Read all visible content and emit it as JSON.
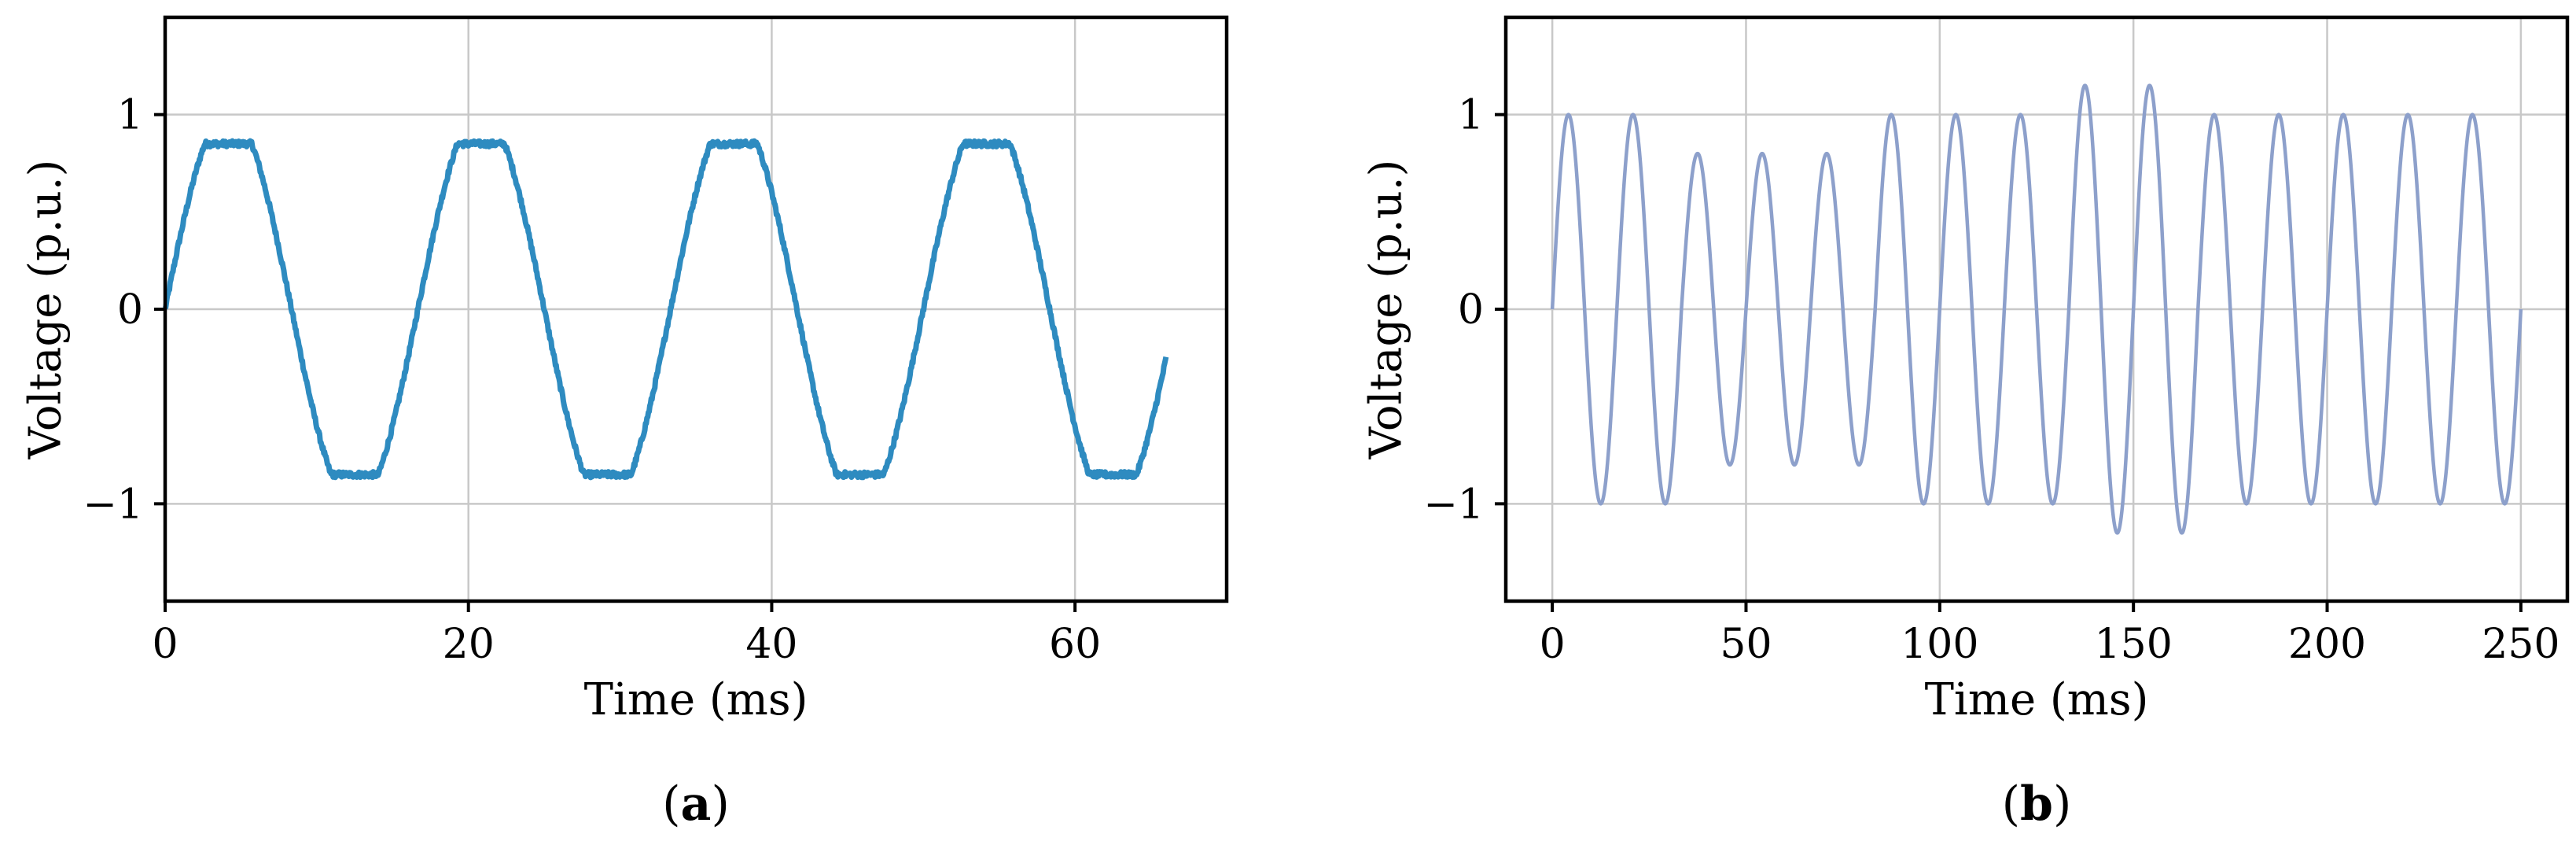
{
  "chart_data": [
    {
      "type": "line",
      "caption": "a",
      "xlabel": "Time (ms)",
      "ylabel": "Voltage (p.u.)",
      "xlim": [
        0,
        70
      ],
      "ylim": [
        -1.5,
        1.5
      ],
      "xticks": [
        {
          "value": 0,
          "label": "0"
        },
        {
          "value": 20,
          "label": "20"
        },
        {
          "value": 40,
          "label": "40"
        },
        {
          "value": 60,
          "label": "60"
        }
      ],
      "yticks": [
        {
          "value": -1,
          "label": "−1"
        },
        {
          "value": 0,
          "label": "0"
        },
        {
          "value": 1,
          "label": "1"
        }
      ],
      "grid": true,
      "color": "#2e8bc0",
      "series": [
        {
          "signal": "flattened-top sine",
          "frequency_hz": 60,
          "peak": 0.85,
          "x_range": [
            0,
            66
          ],
          "noise": 0.015
        }
      ]
    },
    {
      "type": "line",
      "caption": "b",
      "xlabel": "Time (ms)",
      "ylabel": "Voltage (p.u.)",
      "xlim": [
        -12,
        262
      ],
      "ylim": [
        -1.5,
        1.5
      ],
      "xticks": [
        {
          "value": 0,
          "label": "0"
        },
        {
          "value": 50,
          "label": "50"
        },
        {
          "value": 100,
          "label": "100"
        },
        {
          "value": 150,
          "label": "150"
        },
        {
          "value": 200,
          "label": "200"
        },
        {
          "value": 250,
          "label": "250"
        }
      ],
      "yticks": [
        {
          "value": -1,
          "label": "−1"
        },
        {
          "value": 0,
          "label": "0"
        },
        {
          "value": 1,
          "label": "1"
        }
      ],
      "grid": true,
      "color": "#8da0cb",
      "series": [
        {
          "signal": "sine",
          "frequency_hz": 60,
          "x_range": [
            0,
            250
          ],
          "amplitude_segments": [
            {
              "cycles": 2,
              "amplitude": 1.0
            },
            {
              "cycles": 3,
              "amplitude": 0.8
            },
            {
              "cycles": 3,
              "amplitude": 1.0
            },
            {
              "cycles": 2,
              "amplitude": 1.15
            },
            {
              "cycles": 5,
              "amplitude": 1.0
            }
          ]
        }
      ]
    }
  ]
}
